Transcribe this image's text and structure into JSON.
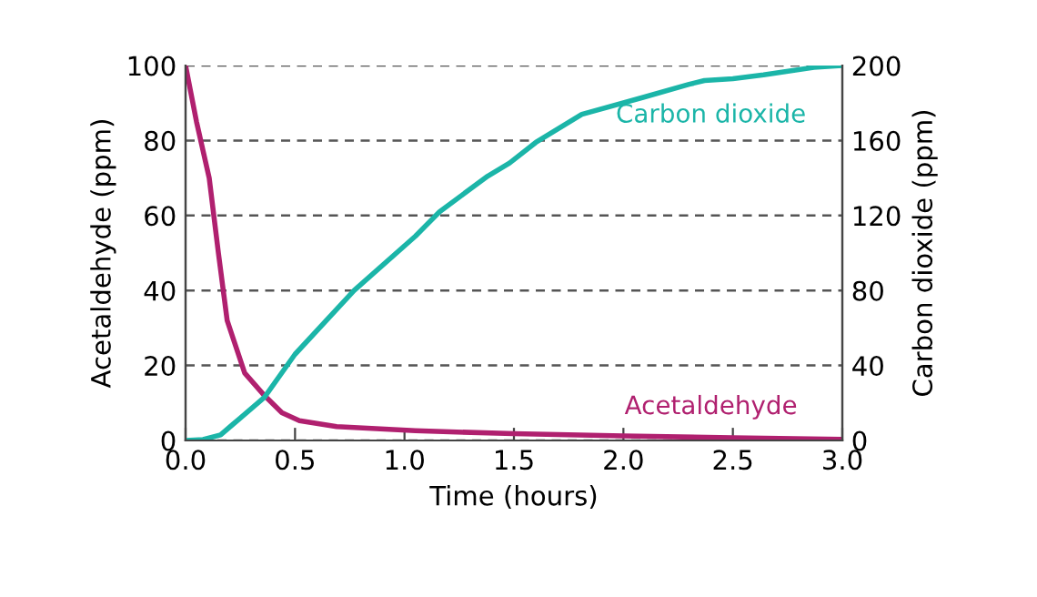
{
  "chart_data": {
    "type": "line",
    "xlabel": "Time (hours)",
    "ylabel": "Acetaldehyde (ppm)",
    "y2label": "Carbon dioxide (ppm)",
    "xlim": [
      0,
      3
    ],
    "xticks": [
      {
        "value": 0,
        "label": "0.0"
      },
      {
        "value": 0.5,
        "label": "0.5"
      },
      {
        "value": 1,
        "label": "1.0"
      },
      {
        "value": 1.5,
        "label": "1.5"
      },
      {
        "value": 2,
        "label": "2.0"
      },
      {
        "value": 2.5,
        "label": "2.5"
      },
      {
        "value": 3,
        "label": "3.0"
      }
    ],
    "ylim": [
      0,
      100
    ],
    "yticks": [
      0,
      20,
      40,
      60,
      80,
      100
    ],
    "y2lim": [
      0,
      200
    ],
    "y2ticks": [
      0,
      40,
      80,
      120,
      160,
      200
    ],
    "grid": "y",
    "legend": false,
    "line_style": "solid",
    "marker": "none",
    "series": [
      {
        "name": "Carbon dioxide",
        "color": "#1bb5a8",
        "axis": "y2",
        "x": [
          0,
          0.08,
          0.16,
          0.25,
          0.36,
          0.5,
          0.77,
          1.05,
          1.16,
          1.38,
          1.48,
          1.6,
          1.81,
          2.09,
          2.3,
          2.37,
          2.5,
          2.64,
          2.87,
          3.0
        ],
        "values": [
          0,
          0.5,
          3,
          12,
          23,
          46,
          80,
          109,
          122,
          141,
          148,
          159,
          174,
          183,
          190,
          192,
          193,
          195,
          199,
          200
        ]
      },
      {
        "name": "Acetaldehyde",
        "color": "#b0206f",
        "x": [
          0,
          0.05,
          0.108,
          0.15,
          0.19,
          0.27,
          0.36,
          0.44,
          0.52,
          0.69,
          1.05,
          1.5,
          2.0,
          2.5,
          3.0
        ],
        "values": [
          100,
          85,
          70,
          50,
          32,
          18,
          12,
          7.4,
          5.3,
          3.7,
          2.6,
          1.8,
          1.2,
          0.7,
          0.3
        ]
      }
    ]
  }
}
